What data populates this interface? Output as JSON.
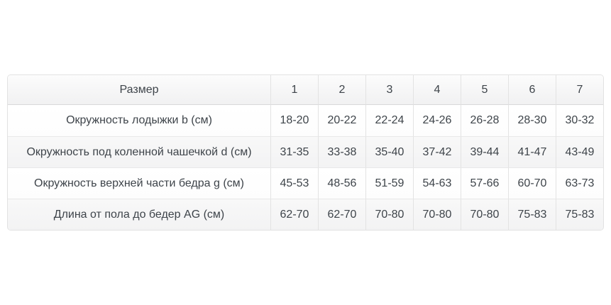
{
  "chart_data": {
    "type": "table",
    "title": "Размер",
    "columns": [
      "Размер",
      "1",
      "2",
      "3",
      "4",
      "5",
      "6",
      "7"
    ],
    "rows": [
      [
        "Окружность лодыжки b (см)",
        "18-20",
        "20-22",
        "22-24",
        "24-26",
        "26-28",
        "28-30",
        "30-32"
      ],
      [
        "Окружность под коленной чашечкой d (см)",
        "31-35",
        "33-38",
        "35-40",
        "37-42",
        "39-44",
        "41-47",
        "43-49"
      ],
      [
        "Окружность верхней части бедра g (см)",
        "45-53",
        "48-56",
        "51-59",
        "54-63",
        "57-66",
        "60-70",
        "63-73"
      ],
      [
        "Длина от пола до бедер AG (см)",
        "62-70",
        "62-70",
        "70-80",
        "70-80",
        "70-80",
        "75-83",
        "75-83"
      ]
    ],
    "layout": {
      "grid": true,
      "zebra_striping": true,
      "colors": {
        "text": "#3e444a",
        "border": "#e2e2e2",
        "header_background": "#f1f1f2",
        "stripe_background": "#f5f5f6",
        "row_background": "#ffffff"
      }
    }
  }
}
